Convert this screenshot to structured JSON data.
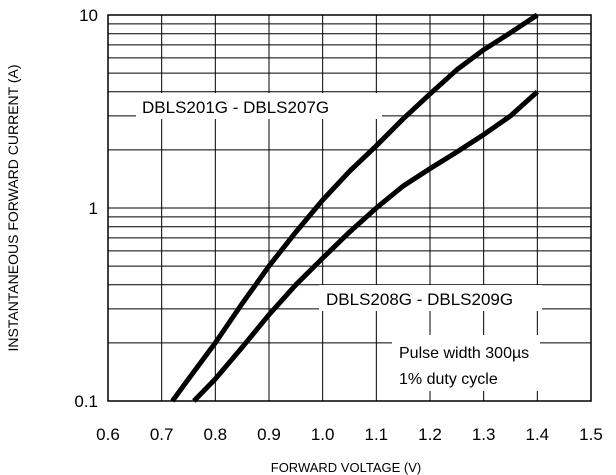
{
  "chart_data": {
    "type": "line",
    "xlabel": "FORWARD VOLTAGE (V)",
    "ylabel": "INSTANTANEOUS FORWARD CURRENT (A)",
    "xlim": [
      0.6,
      1.5
    ],
    "ylim": [
      0.1,
      10
    ],
    "yscale": "log",
    "grid": true,
    "x_ticks": [
      "0.6",
      "0.7",
      "0.8",
      "0.9",
      "1.0",
      "1.1",
      "1.2",
      "1.3",
      "1.4",
      "1.5"
    ],
    "y_ticks": [
      "0.1",
      "1",
      "10"
    ],
    "series": [
      {
        "name": "DBLS201G - DBLS207G",
        "x": [
          0.72,
          0.75,
          0.8,
          0.85,
          0.9,
          0.95,
          1.0,
          1.05,
          1.1,
          1.15,
          1.2,
          1.25,
          1.3,
          1.35,
          1.4
        ],
        "y": [
          0.1,
          0.13,
          0.2,
          0.32,
          0.5,
          0.75,
          1.1,
          1.55,
          2.1,
          2.9,
          3.9,
          5.2,
          6.6,
          8.1,
          10
        ]
      },
      {
        "name": "DBLS208G - DBLS209G",
        "x": [
          0.76,
          0.8,
          0.85,
          0.9,
          0.95,
          1.0,
          1.05,
          1.1,
          1.15,
          1.2,
          1.25,
          1.3,
          1.35,
          1.4
        ],
        "y": [
          0.1,
          0.13,
          0.19,
          0.28,
          0.4,
          0.55,
          0.75,
          1.0,
          1.3,
          1.6,
          1.95,
          2.4,
          3.0,
          4.0
        ]
      }
    ],
    "annotations": [
      "Pulse width 300µs",
      "1% duty cycle"
    ]
  }
}
